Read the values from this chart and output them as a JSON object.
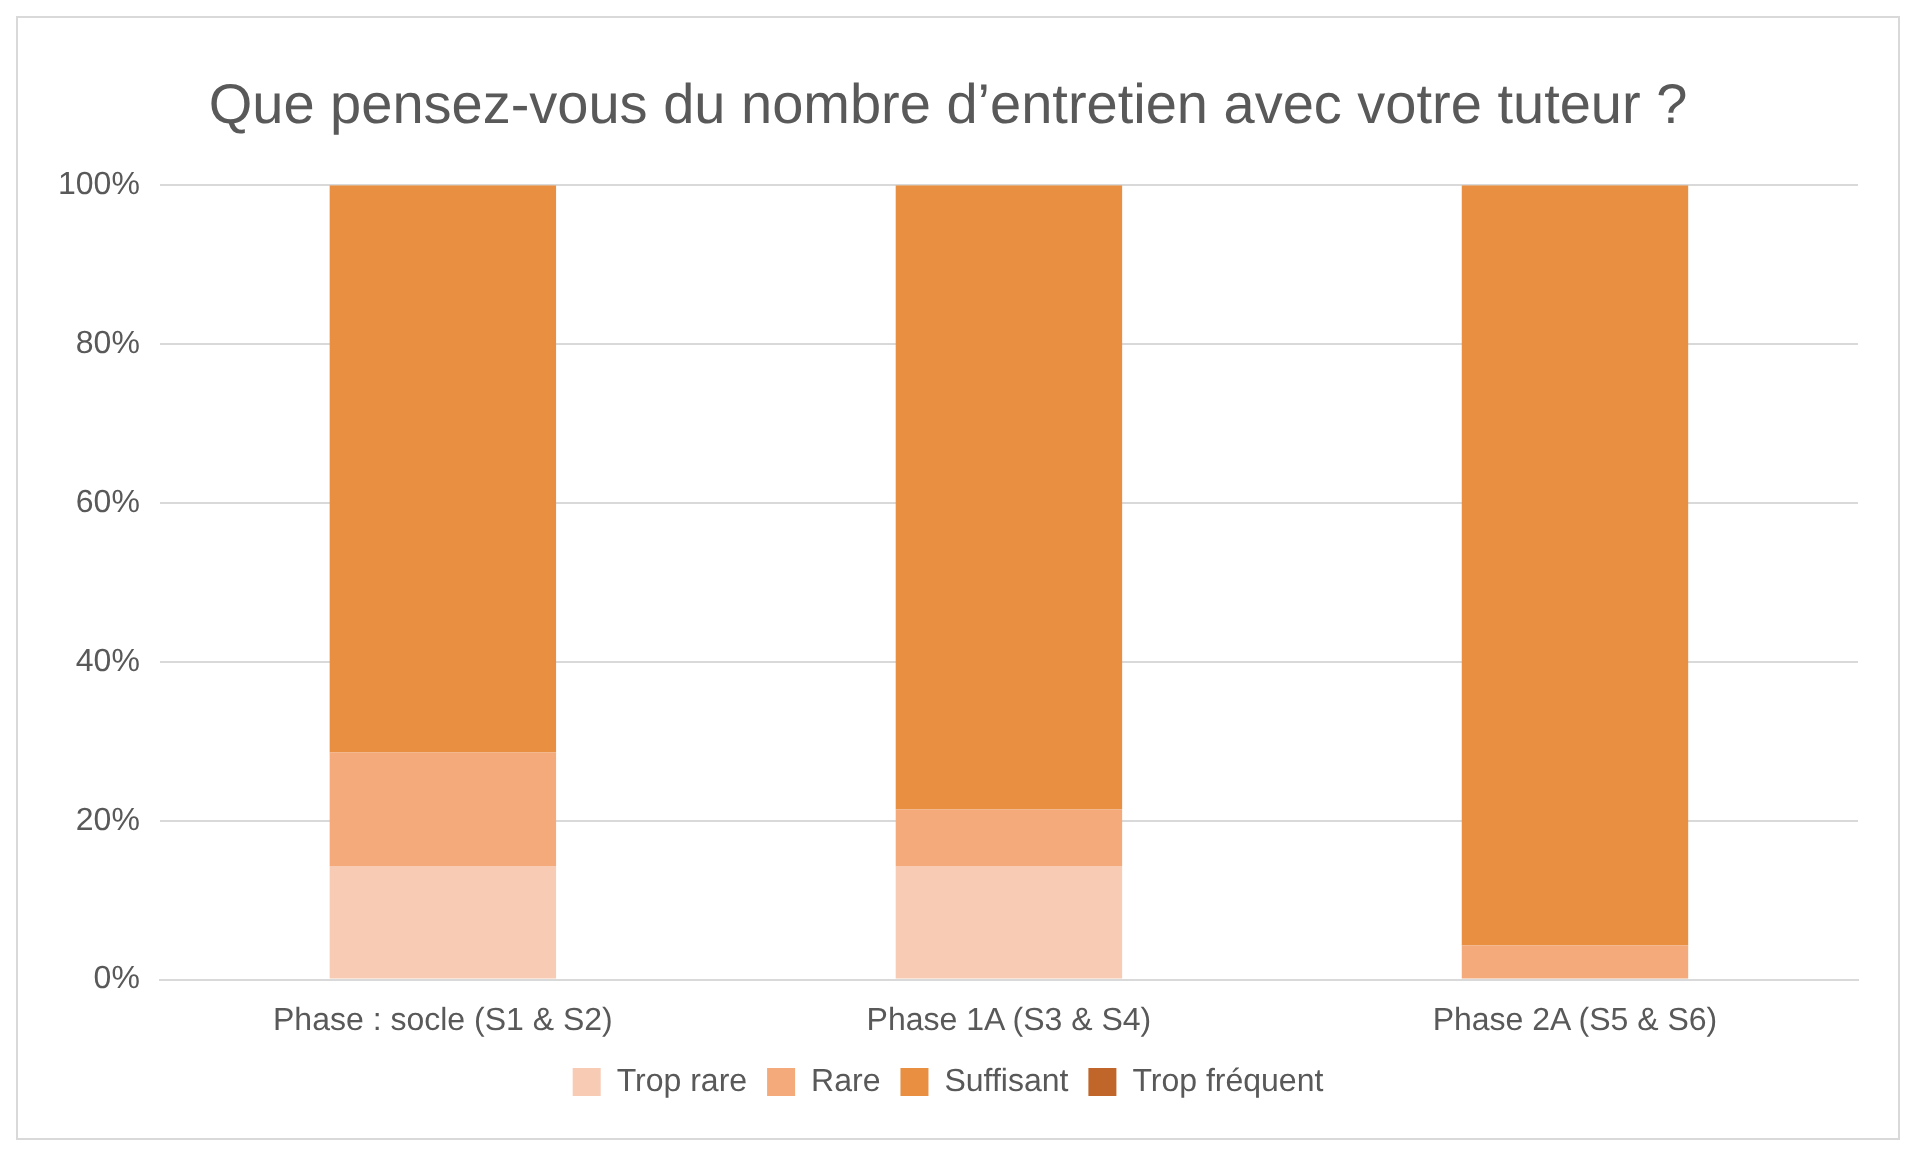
{
  "chart_data": {
    "type": "bar",
    "title": "Que pensez-vous du nombre d’entretien avec votre tuteur ?",
    "stacked": true,
    "categories": [
      "Phase : socle (S1 & S2)",
      "Phase 1A (S3 & S4)",
      "Phase 2A (S5 & S6)"
    ],
    "series": [
      {
        "name": "Trop rare",
        "color": "#f8cbb4",
        "values": [
          14.3,
          14.3,
          0
        ]
      },
      {
        "name": "Rare",
        "color": "#f4aa7a",
        "values": [
          14.3,
          7.1,
          4.3
        ]
      },
      {
        "name": "Suffisant",
        "color": "#e88f42",
        "values": [
          71.4,
          78.6,
          95.7
        ]
      },
      {
        "name": "Trop fréquent",
        "color": "#c0662a",
        "values": [
          0,
          0,
          0
        ]
      }
    ],
    "ylim": [
      0,
      100
    ],
    "yticks": [
      {
        "value": 0,
        "label": "0%"
      },
      {
        "value": 20,
        "label": "20%"
      },
      {
        "value": 40,
        "label": "40%"
      },
      {
        "value": 60,
        "label": "60%"
      },
      {
        "value": 80,
        "label": "80%"
      },
      {
        "value": 100,
        "label": "100%"
      }
    ],
    "grid": "y",
    "legend": "bottom"
  }
}
